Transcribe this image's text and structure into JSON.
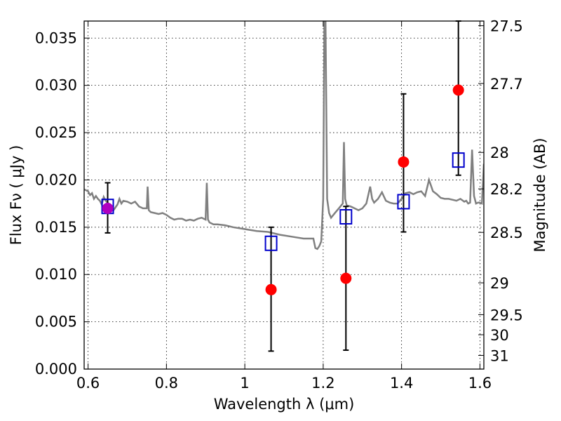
{
  "chart_data": {
    "type": "scatter",
    "xlabel": "Wavelength  λ (μm)",
    "ylabel": "Flux  Fν  ( μJy )",
    "ylabel_right": "Magnitude (AB)",
    "xlim": [
      0.59,
      1.61
    ],
    "ylim": [
      0.0,
      0.0368
    ],
    "grid": true,
    "x_ticks": [
      0.6,
      0.8,
      1.0,
      1.2,
      1.4,
      1.6
    ],
    "x_tick_labels": [
      "0.6",
      "0.8",
      "1",
      "1.2",
      "1.4",
      "1.6"
    ],
    "y_ticks": [
      0.0,
      0.005,
      0.01,
      0.015,
      0.02,
      0.025,
      0.03,
      0.035
    ],
    "y_tick_labels": [
      "0.000",
      "0.005",
      "0.010",
      "0.015",
      "0.020",
      "0.025",
      "0.030",
      "0.035"
    ],
    "right_ticks": [
      27.5,
      27.7,
      28,
      28.2,
      28.5,
      29,
      29.5,
      30,
      31
    ],
    "right_tick_labels": [
      "27.5",
      "27.7",
      "28",
      "28.2",
      "28.5",
      "29",
      "29.5",
      "30",
      "31"
    ],
    "colors": {
      "template": "#808080",
      "observed": "#ff0000",
      "errorbar": "#000000",
      "model": "#0000cc",
      "overlap": "#b000c0"
    },
    "series": [
      {
        "type": "line",
        "x": [
          0.59,
          0.6,
          0.605,
          0.61,
          0.615,
          0.62,
          0.625,
          0.63,
          0.635,
          0.64,
          0.645,
          0.65,
          0.655,
          0.66,
          0.665,
          0.67,
          0.675,
          0.68,
          0.685,
          0.69,
          0.7,
          0.71,
          0.72,
          0.73,
          0.74,
          0.75,
          0.752,
          0.755,
          0.76,
          0.77,
          0.78,
          0.79,
          0.8,
          0.81,
          0.82,
          0.83,
          0.84,
          0.85,
          0.86,
          0.87,
          0.88,
          0.89,
          0.9,
          0.903,
          0.906,
          0.91,
          0.92,
          0.93,
          0.95,
          0.97,
          1.0,
          1.03,
          1.06,
          1.09,
          1.12,
          1.15,
          1.175,
          1.18,
          1.185,
          1.19,
          1.195,
          1.2,
          1.203,
          1.206,
          1.21,
          1.215,
          1.22,
          1.23,
          1.24,
          1.25,
          1.253,
          1.256,
          1.26,
          1.27,
          1.28,
          1.29,
          1.3,
          1.31,
          1.32,
          1.325,
          1.33,
          1.34,
          1.35,
          1.36,
          1.37,
          1.38,
          1.39,
          1.4,
          1.41,
          1.42,
          1.43,
          1.44,
          1.45,
          1.46,
          1.47,
          1.48,
          1.49,
          1.5,
          1.51,
          1.52,
          1.53,
          1.54,
          1.55,
          1.56,
          1.565,
          1.57,
          1.575,
          1.58,
          1.585,
          1.59,
          1.595,
          1.6,
          1.605,
          1.61
        ],
        "y": [
          0.019,
          0.0188,
          0.0184,
          0.0186,
          0.018,
          0.0183,
          0.018,
          0.0178,
          0.0174,
          0.0182,
          0.0178,
          0.0176,
          0.0172,
          0.017,
          0.0168,
          0.0171,
          0.0174,
          0.018,
          0.0175,
          0.0178,
          0.0177,
          0.0175,
          0.0177,
          0.0172,
          0.017,
          0.017,
          0.0193,
          0.0168,
          0.0166,
          0.0165,
          0.0164,
          0.0165,
          0.0163,
          0.016,
          0.0158,
          0.0159,
          0.0159,
          0.0157,
          0.0158,
          0.0157,
          0.0159,
          0.016,
          0.0158,
          0.0197,
          0.0158,
          0.0155,
          0.0153,
          0.0153,
          0.0152,
          0.015,
          0.0148,
          0.0146,
          0.0145,
          0.0142,
          0.014,
          0.0138,
          0.0138,
          0.0128,
          0.0127,
          0.013,
          0.0135,
          0.018,
          0.0368,
          0.0368,
          0.018,
          0.0165,
          0.016,
          0.0165,
          0.017,
          0.0175,
          0.024,
          0.018,
          0.0173,
          0.0172,
          0.017,
          0.0168,
          0.017,
          0.0175,
          0.0193,
          0.018,
          0.0176,
          0.018,
          0.0187,
          0.0178,
          0.0176,
          0.0175,
          0.0175,
          0.018,
          0.0186,
          0.0187,
          0.0185,
          0.0187,
          0.0188,
          0.0183,
          0.02,
          0.0188,
          0.0185,
          0.0181,
          0.018,
          0.018,
          0.0179,
          0.0178,
          0.018,
          0.0177,
          0.0178,
          0.0175,
          0.0176,
          0.0232,
          0.0183,
          0.0175,
          0.0176,
          0.0176,
          0.0175,
          0.0217
        ]
      },
      {
        "type": "errorbar",
        "x": [
          0.65,
          1.067,
          1.258,
          1.405,
          1.545
        ],
        "y": [
          0.017,
          0.0084,
          0.0096,
          0.0219,
          0.0295
        ],
        "ylo": [
          0.0144,
          0.0019,
          0.002,
          0.0145,
          0.0205
        ],
        "yhi": [
          0.0197,
          0.015,
          0.0172,
          0.0291,
          0.0368
        ]
      },
      {
        "type": "scatter",
        "marker": "open-square",
        "x": [
          0.65,
          1.067,
          1.258,
          1.405,
          1.545
        ],
        "y": [
          0.0172,
          0.0133,
          0.0161,
          0.0177,
          0.0221
        ]
      }
    ]
  }
}
